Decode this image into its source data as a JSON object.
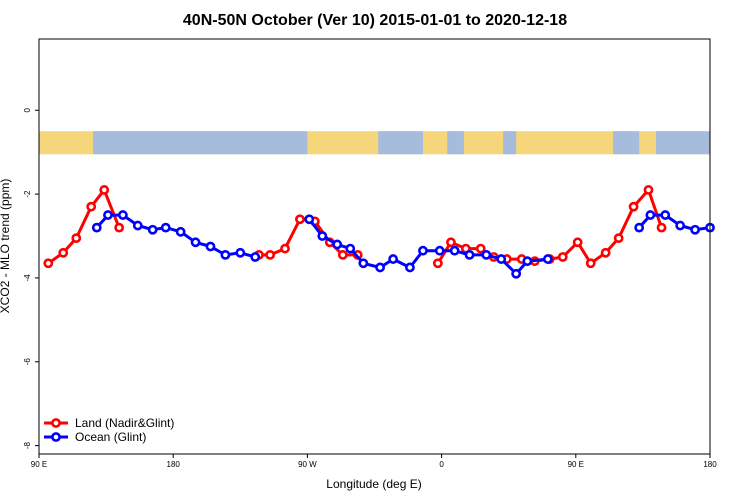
{
  "chart_data": {
    "type": "line",
    "title": "40N-50N October (Ver 10)   2015-01-01 to 2020-12-18",
    "xlabel": "Longitude (deg E)",
    "ylabel": "XCO2 - MLO trend (ppm)",
    "xlim": [
      90,
      450
    ],
    "ylim": [
      -8.2,
      1.7
    ],
    "x_ticks": [
      {
        "value": 90,
        "label": "90 E"
      },
      {
        "value": 162,
        "label": "180"
      },
      {
        "value": 234,
        "label": "90 W"
      },
      {
        "value": 306,
        "label": "0"
      },
      {
        "value": 378,
        "label": "90 E"
      },
      {
        "value": 450,
        "label": "180"
      }
    ],
    "y_ticks": [
      0,
      -2,
      -4,
      -6,
      -8
    ],
    "grid": false,
    "legend_position": "bottom-left",
    "map_strip": {
      "y_top": -0.5,
      "y_bottom": -1.05,
      "land_color": "#f5d67a",
      "ocean_color": "#a7bcdc"
    },
    "series": [
      {
        "name": "Land (Nadir&Glint)",
        "color": "#ff0000",
        "segments": [
          [
            [
              95,
              -3.65
            ],
            [
              103,
              -3.4
            ],
            [
              110,
              -3.05
            ],
            [
              118,
              -2.3
            ],
            [
              125,
              -1.9
            ],
            [
              133,
              -2.8
            ]
          ],
          [
            [
              208,
              -3.45
            ],
            [
              214,
              -3.45
            ],
            [
              222,
              -3.3
            ],
            [
              230,
              -2.6
            ],
            [
              238,
              -2.65
            ],
            [
              246,
              -3.15
            ],
            [
              253,
              -3.45
            ],
            [
              261,
              -3.45
            ]
          ],
          [
            [
              304,
              -3.65
            ],
            [
              311,
              -3.15
            ],
            [
              319,
              -3.3
            ],
            [
              327,
              -3.3
            ],
            [
              334,
              -3.5
            ],
            [
              341,
              -3.55
            ],
            [
              349,
              -3.55
            ],
            [
              356,
              -3.6
            ],
            [
              364,
              -3.55
            ],
            [
              371,
              -3.5
            ],
            [
              379,
              -3.15
            ],
            [
              386,
              -3.65
            ],
            [
              394,
              -3.4
            ],
            [
              401,
              -3.05
            ],
            [
              409,
              -2.3
            ],
            [
              417,
              -1.9
            ],
            [
              424,
              -2.8
            ]
          ]
        ]
      },
      {
        "name": "Ocean (Glint)",
        "color": "#0000ff",
        "segments": [
          [
            [
              121,
              -2.8
            ],
            [
              127,
              -2.5
            ],
            [
              135,
              -2.5
            ],
            [
              143,
              -2.75
            ],
            [
              151,
              -2.85
            ],
            [
              158,
              -2.8
            ],
            [
              166,
              -2.9
            ],
            [
              174,
              -3.15
            ],
            [
              182,
              -3.25
            ],
            [
              190,
              -3.45
            ],
            [
              198,
              -3.4
            ],
            [
              206,
              -3.5
            ]
          ],
          [
            [
              235,
              -2.6
            ],
            [
              242,
              -3.0
            ],
            [
              250,
              -3.2
            ],
            [
              257,
              -3.3
            ],
            [
              264,
              -3.65
            ],
            [
              273,
              -3.75
            ],
            [
              280,
              -3.55
            ],
            [
              289,
              -3.75
            ],
            [
              296,
              -3.35
            ],
            [
              305,
              -3.35
            ],
            [
              313,
              -3.35
            ],
            [
              321,
              -3.45
            ],
            [
              330,
              -3.45
            ],
            [
              338,
              -3.55
            ],
            [
              346,
              -3.9
            ],
            [
              352,
              -3.6
            ],
            [
              363,
              -3.55
            ]
          ],
          [
            [
              412,
              -2.8
            ],
            [
              418,
              -2.5
            ],
            [
              426,
              -2.5
            ],
            [
              434,
              -2.75
            ],
            [
              442,
              -2.85
            ],
            [
              450,
              -2.8
            ]
          ]
        ]
      }
    ]
  }
}
